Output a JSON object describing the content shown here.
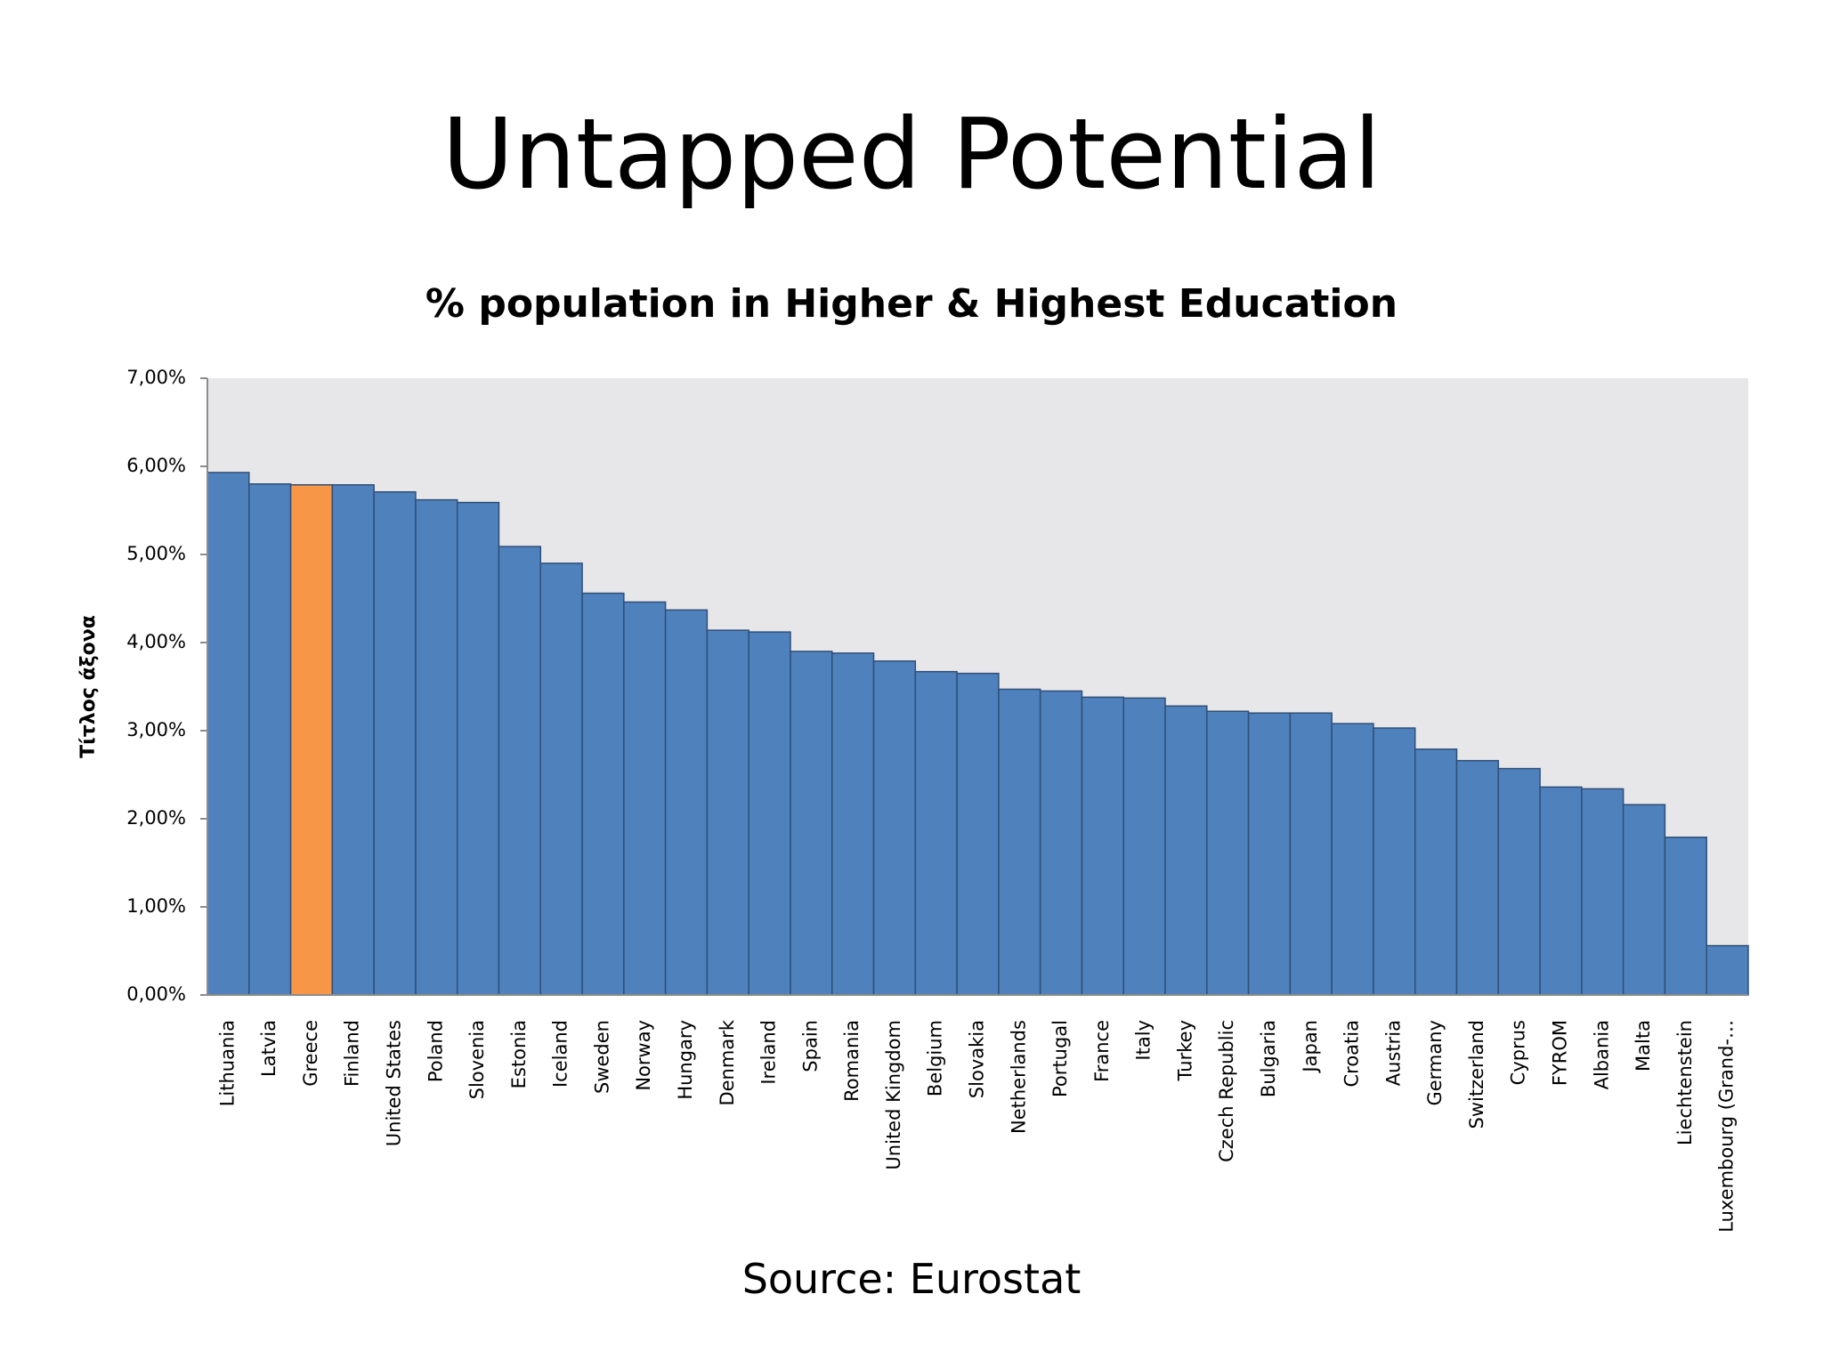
{
  "slide": {
    "title": "Untapped Potential",
    "source": "Source: Eurostat"
  },
  "chart_data": {
    "type": "bar",
    "title": "% population in Higher & Highest Education",
    "xlabel": "",
    "ylabel": "Τίτλος άξονα",
    "ylim": [
      0,
      0.07
    ],
    "yticks": [
      {
        "value": 0.0,
        "label": "0,00%"
      },
      {
        "value": 0.01,
        "label": "1,00%"
      },
      {
        "value": 0.02,
        "label": "2,00%"
      },
      {
        "value": 0.03,
        "label": "3,00%"
      },
      {
        "value": 0.04,
        "label": "4,00%"
      },
      {
        "value": 0.05,
        "label": "5,00%"
      },
      {
        "value": 0.06,
        "label": "6,00%"
      },
      {
        "value": 0.07,
        "label": "7,00%"
      }
    ],
    "grid": false,
    "categories": [
      "Lithuania",
      "Latvia",
      "Greece",
      "Finland",
      "United States",
      "Poland",
      "Slovenia",
      "Estonia",
      "Iceland",
      "Sweden",
      "Norway",
      "Hungary",
      "Denmark",
      "Ireland",
      "Spain",
      "Romania",
      "United Kingdom",
      "Belgium",
      "Slovakia",
      "Netherlands",
      "Portugal",
      "France",
      "Italy",
      "Turkey",
      "Czech Republic",
      "Bulgaria",
      "Japan",
      "Croatia",
      "Austria",
      "Germany",
      "Switzerland",
      "Cyprus",
      "FYROM",
      "Albania",
      "Malta",
      "Liechtenstein",
      "Luxembourg (Grand-…"
    ],
    "values": [
      0.0593,
      0.058,
      0.0579,
      0.0579,
      0.0571,
      0.0562,
      0.0559,
      0.0509,
      0.049,
      0.0456,
      0.0446,
      0.0437,
      0.0414,
      0.0412,
      0.039,
      0.0388,
      0.0379,
      0.0367,
      0.0365,
      0.0347,
      0.0345,
      0.0338,
      0.0337,
      0.0328,
      0.0322,
      0.032,
      0.032,
      0.0308,
      0.0303,
      0.0279,
      0.0266,
      0.0257,
      0.0236,
      0.0234,
      0.0216,
      0.0179,
      0.0056
    ],
    "highlight_category": "Greece",
    "colors": {
      "bar": "#4f81bd",
      "highlight": "#f79646",
      "bar_edge": "#2f4f77",
      "plot_background": "#e7e7ea",
      "axis": "#8c8c8c"
    }
  }
}
